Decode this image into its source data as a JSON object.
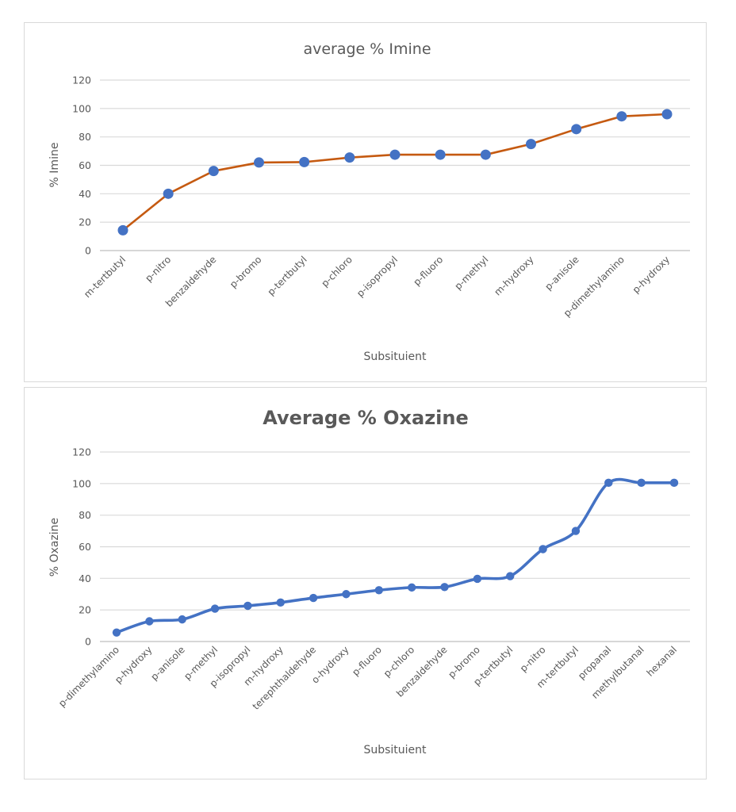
{
  "chart_data": [
    {
      "type": "line",
      "title": "average % Imine",
      "xlabel": "Subsituient",
      "ylabel": "% Imine",
      "ylim": [
        0,
        120
      ],
      "yticks": [
        "0",
        "20",
        "40",
        "60",
        "80",
        "100",
        "120"
      ],
      "grid": true,
      "legend": "none",
      "smooth": false,
      "line_color": "#C55A11",
      "marker_color": "#4472C4",
      "categories": [
        "m-tertbutyl",
        "p-nitro",
        "benzaldehyde",
        "p-bromo",
        "p-tertbutyl",
        "p-chloro",
        "p-isopropyl",
        "p-fluoro",
        "p-methyl",
        "m-hydroxy",
        "p-anisole",
        "p-dimethylamino",
        "p-hydroxy"
      ],
      "values": [
        14.3,
        40,
        56,
        62,
        62.3,
        65.5,
        67.5,
        67.5,
        67.5,
        75,
        85.5,
        94.5,
        96
      ]
    },
    {
      "type": "line",
      "title": "Average % Oxazine",
      "xlabel": "Subsituient",
      "ylabel": "% Oxazine",
      "ylim": [
        0,
        120
      ],
      "yticks": [
        "0",
        "20",
        "40",
        "60",
        "80",
        "100",
        "120"
      ],
      "grid": true,
      "legend": "none",
      "smooth": true,
      "line_color": "#4472C4",
      "marker_color": "#4472C4",
      "categories": [
        "p-dimethylamino",
        "p-hydroxy",
        "p-anisole",
        "p-methyl",
        "p-isopropyl",
        "m-hydroxy",
        "terephthaldehyde",
        "o-hydroxy",
        "p-fluoro",
        "p-chloro",
        "benzaldehyde",
        "p-bromo",
        "p-tertbutyl",
        "p-nitro",
        "m-tertbutyl",
        "propanal",
        "methylbutanal",
        "hexanal"
      ],
      "values": [
        5.7,
        12.8,
        14,
        20.8,
        22.6,
        24.7,
        27.6,
        30,
        32.5,
        34.2,
        34.5,
        39.7,
        41.4,
        58.5,
        70,
        100.5,
        100.5,
        100.5
      ]
    }
  ]
}
